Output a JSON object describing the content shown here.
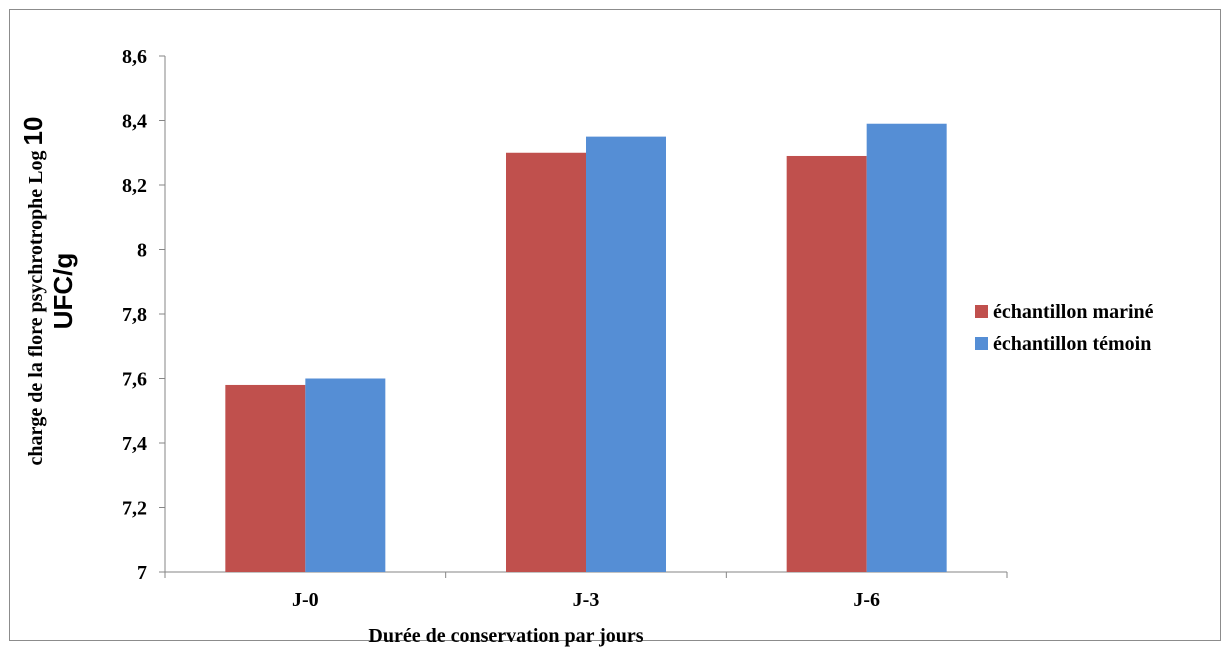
{
  "chart_data": {
    "type": "bar",
    "categories": [
      "J-0",
      "J-3",
      "J-6"
    ],
    "series": [
      {
        "name": "échantillon mariné",
        "values": [
          7.58,
          8.3,
          8.29
        ],
        "color": "#c0504d"
      },
      {
        "name": "échantillon témoin",
        "values": [
          7.6,
          8.35,
          8.39
        ],
        "color": "#558ed5"
      }
    ],
    "ylim": [
      7,
      8.6
    ],
    "yticks": [
      {
        "value": 7,
        "label": "7"
      },
      {
        "value": 7.2,
        "label": "7,2"
      },
      {
        "value": 7.4,
        "label": "7,4"
      },
      {
        "value": 7.6,
        "label": "7,6"
      },
      {
        "value": 7.8,
        "label": "7,8"
      },
      {
        "value": 8,
        "label": "8"
      },
      {
        "value": 8.2,
        "label": "8,2"
      },
      {
        "value": 8.4,
        "label": "8,4"
      },
      {
        "value": 8.6,
        "label": "8,6"
      }
    ],
    "xlabel": "Durée de conservation par jours",
    "ylabel_line1_main": "charge de la flore psychrotrophe Log ",
    "ylabel_line1_emph": "10",
    "ylabel_line2": "UFC/g",
    "grid": false,
    "legend_position": "right"
  }
}
